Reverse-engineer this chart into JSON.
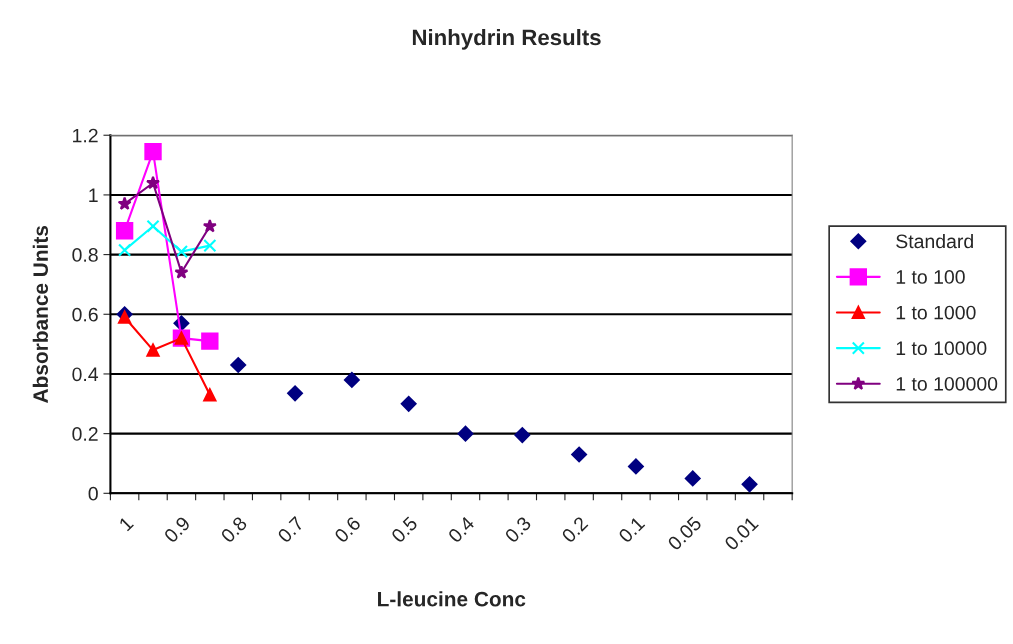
{
  "chart_data": {
    "type": "line",
    "title": "Ninhydrin Results",
    "xlabel": "L-leucine Conc",
    "ylabel": "Absorbance Units",
    "categories": [
      "1",
      null,
      "0.9",
      null,
      "0.8",
      null,
      "0.7",
      null,
      "0.6",
      null,
      "0.5",
      null,
      "0.4",
      null,
      "0.3",
      null,
      "0.2",
      null,
      "0.1",
      null,
      "0.05",
      null,
      "0.01",
      null
    ],
    "series": [
      {
        "name": "Standard",
        "type": "scatter",
        "marker": "diamond",
        "color": "#000080",
        "values": [
          0.6,
          null,
          0.57,
          null,
          0.43,
          null,
          0.335,
          null,
          0.38,
          null,
          0.3,
          null,
          0.2,
          null,
          0.195,
          null,
          0.13,
          null,
          0.09,
          null,
          0.05,
          null,
          0.03,
          null
        ]
      },
      {
        "name": "1 to 100",
        "marker": "square",
        "color": "#ff00ff",
        "values": [
          0.88,
          1.145,
          0.52,
          0.51,
          null,
          null,
          null,
          null,
          null,
          null,
          null,
          null,
          null,
          null,
          null,
          null,
          null,
          null,
          null,
          null,
          null,
          null,
          null,
          null
        ]
      },
      {
        "name": "1 to 1000",
        "marker": "triangle",
        "color": "#ff0000",
        "values": [
          0.59,
          0.48,
          0.52,
          0.33,
          null,
          null,
          null,
          null,
          null,
          null,
          null,
          null,
          null,
          null,
          null,
          null,
          null,
          null,
          null,
          null,
          null,
          null,
          null,
          null
        ]
      },
      {
        "name": "1 to 10000",
        "marker": "cross",
        "color": "#00ffff",
        "values": [
          0.815,
          0.895,
          0.81,
          0.83,
          null,
          null,
          null,
          null,
          null,
          null,
          null,
          null,
          null,
          null,
          null,
          null,
          null,
          null,
          null,
          null,
          null,
          null,
          null,
          null
        ]
      },
      {
        "name": "1 to 100000",
        "marker": "star",
        "color": "#800080",
        "values": [
          0.97,
          1.04,
          0.74,
          0.895,
          null,
          null,
          null,
          null,
          null,
          null,
          null,
          null,
          null,
          null,
          null,
          null,
          null,
          null,
          null,
          null,
          null,
          null,
          null,
          null
        ]
      }
    ],
    "ylim": [
      0,
      1.2
    ],
    "yticks": [
      0,
      0.2,
      0.4,
      0.6,
      0.8,
      {
        "value": 1,
        "label": "1"
      },
      1.2
    ],
    "grid": "y",
    "legend": "right"
  }
}
